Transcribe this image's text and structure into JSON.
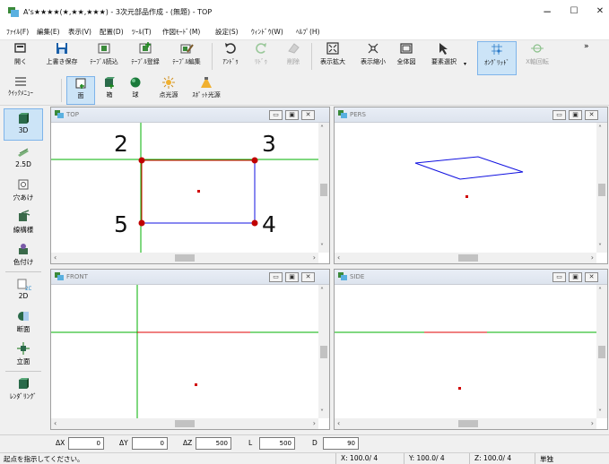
{
  "window": {
    "title": "A's★★★★(★,★★,★★★) - 3次元部品作成 - (無題) - TOP",
    "min": "−",
    "max": "☐",
    "close": "✕"
  },
  "menu": [
    "ﾌｧｲﾙ(F)",
    "編集(E)",
    "表示(V)",
    "配置(D)",
    "ﾂｰﾙ(T)",
    "作図ﾓｰﾄﾞ(M)",
    "設定(S)",
    "ｳｨﾝﾄﾞｳ(W)",
    "ﾍﾙﾌﾟ(H)"
  ],
  "toolbar": {
    "open": "開く",
    "save": "上書き保存",
    "table_load": "ﾃｰﾌﾞﾙ読込",
    "table_register": "ﾃｰﾌﾞﾙ登録",
    "table_edit": "ﾃｰﾌﾞﾙ編集",
    "undo": "ｱﾝﾄﾞｩ",
    "redo": "ﾘﾄﾞｩ",
    "delete": "削除",
    "zoom_in": "表示拡大",
    "zoom_out": "表示縮小",
    "fit_all": "全体図",
    "select": "要素選択",
    "ortho": "ｵﾝｸﾞﾘｯﾄﾞ",
    "xrotate": "X軸回転",
    "overflow": "»"
  },
  "toolbar2": {
    "quickmenu": "ｸｲｯｸﾒﾆｭｰ",
    "face": "面",
    "box": "箱",
    "sphere": "球",
    "point_light": "点光源",
    "spot_light": "ｽﾎﾟｯﾄ光源"
  },
  "sidebar": [
    "3D",
    "2.5D",
    "穴あけ",
    "線構様",
    "色付け",
    "2D",
    "断面",
    "立面",
    "ﾚﾝﾀﾞﾘﾝｸﾞ"
  ],
  "views": {
    "top": "TOP",
    "pers": "PERS",
    "front": "FRONT",
    "side": "SIDE"
  },
  "points": [
    "2",
    "3",
    "5",
    "4"
  ],
  "coords": {
    "dx_label": "ΔX",
    "dx": "0",
    "dy_label": "ΔY",
    "dy": "0",
    "dz_label": "ΔZ",
    "dz": "500",
    "l_label": "L",
    "l": "500",
    "d_label": "D",
    "d": "90"
  },
  "status": {
    "message": "起点を指示してください。",
    "x": "X: 100.0/ 4",
    "y": "Y: 100.0/ 4",
    "z": "Z: 100.0/ 4",
    "mode": "単独"
  },
  "colors": {
    "accent": "#cce4f7",
    "guide": "#00b000",
    "edge": "#1010e0",
    "selected_edge": "#e00000",
    "point": "#c00000"
  }
}
